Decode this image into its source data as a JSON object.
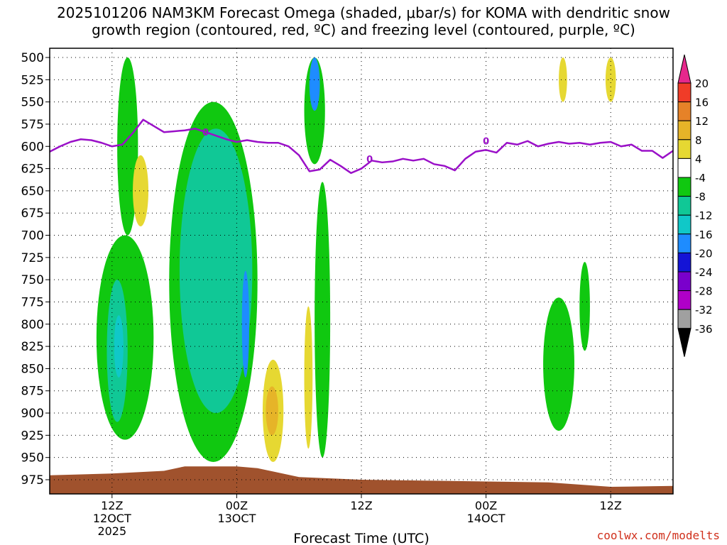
{
  "figure": {
    "title_line1": "2025101206 NAM3KM Forecast Omega (shaded, μbar/s) for KOMA with dendritic snow",
    "title_line2": "growth region (contoured, red, ºC) and freezing level (contoured, purple, ºC)",
    "watermark": "coolwx.com/modelts"
  },
  "chart_data": {
    "type": "heatmap",
    "title": "2025101206 NAM3KM Forecast Omega (shaded, μbar/s) for KOMA with dendritic snow growth region (contoured, red, ºC) and freezing level (contoured, purple, ºC)",
    "xlabel": "Forecast Time (UTC)",
    "ylabel": "",
    "x_range_hours": [
      6,
      66
    ],
    "y_range_hPa": [
      975,
      500
    ],
    "grid": "dotted",
    "x_ticks": [
      {
        "hour": 12,
        "label": "12Z",
        "sub1": "12OCT",
        "sub2": "2025"
      },
      {
        "hour": 24,
        "label": "00Z",
        "sub1": "13OCT",
        "sub2": ""
      },
      {
        "hour": 36,
        "label": "12Z",
        "sub1": "",
        "sub2": ""
      },
      {
        "hour": 48,
        "label": "00Z",
        "sub1": "14OCT",
        "sub2": ""
      },
      {
        "hour": 60,
        "label": "12Z",
        "sub1": "",
        "sub2": ""
      }
    ],
    "y_ticks": [
      500,
      525,
      550,
      575,
      600,
      625,
      650,
      675,
      700,
      725,
      750,
      775,
      800,
      825,
      850,
      875,
      900,
      925,
      950,
      975
    ],
    "colorbar": {
      "levels": [
        -36,
        -32,
        -28,
        -24,
        -20,
        -16,
        -12,
        -8,
        -4,
        4,
        8,
        12,
        16,
        20
      ],
      "colors": [
        "#000000",
        "#a0a0a0",
        "#b000c8",
        "#7a00cc",
        "#1414d6",
        "#1e8cff",
        "#10c8c8",
        "#10c896",
        "#10c810",
        "#ffffff",
        "#e6d832",
        "#e6b428",
        "#e68228",
        "#f03c28",
        "#e6288c"
      ]
    },
    "freezing_level": {
      "label": "0",
      "hours": [
        6,
        7,
        8,
        9,
        10,
        11,
        12,
        13,
        14,
        15,
        16,
        17,
        18,
        19,
        20,
        21,
        22,
        23,
        24,
        25,
        26,
        27,
        28,
        29,
        30,
        31,
        32,
        33,
        34,
        35,
        36,
        37,
        38,
        39,
        40,
        41,
        42,
        43,
        44,
        45,
        46,
        47,
        48,
        49,
        50,
        51,
        52,
        53,
        54,
        55,
        56,
        57,
        58,
        59,
        60,
        61,
        62,
        63,
        64,
        65,
        66
      ],
      "pressure_hPa": [
        606,
        600,
        595,
        592,
        593,
        596,
        600,
        598,
        585,
        570,
        577,
        584,
        583,
        582,
        580,
        584,
        588,
        592,
        595,
        593,
        595,
        596,
        596,
        600,
        610,
        628,
        626,
        615,
        622,
        630,
        625,
        616,
        618,
        617,
        614,
        616,
        614,
        620,
        622,
        627,
        614,
        606,
        604,
        607,
        596,
        598,
        594,
        600,
        597,
        595,
        597,
        596,
        598,
        596,
        595,
        600,
        598,
        605,
        605,
        613,
        605
      ]
    },
    "omega_regions": [
      {
        "value": -8,
        "hours": [
          12.5,
          14.5
        ],
        "p_hPa": [
          500,
          700
        ]
      },
      {
        "value": -8,
        "hours": [
          10.5,
          16
        ],
        "p_hPa": [
          700,
          930
        ]
      },
      {
        "value": -12,
        "hours": [
          11.5,
          13.5
        ],
        "p_hPa": [
          750,
          910
        ]
      },
      {
        "value": -16,
        "hours": [
          12.2,
          13.1
        ],
        "p_hPa": [
          790,
          860
        ]
      },
      {
        "value": -8,
        "hours": [
          17.5,
          26
        ],
        "p_hPa": [
          550,
          955
        ]
      },
      {
        "value": -12,
        "hours": [
          18.5,
          25.5
        ],
        "p_hPa": [
          580,
          900
        ]
      },
      {
        "value": -20,
        "hours": [
          24.5,
          25.2
        ],
        "p_hPa": [
          740,
          860
        ]
      },
      {
        "value": -8,
        "hours": [
          30.5,
          32.5
        ],
        "p_hPa": [
          500,
          620
        ]
      },
      {
        "value": -20,
        "hours": [
          31,
          32
        ],
        "p_hPa": [
          500,
          560
        ]
      },
      {
        "value": -8,
        "hours": [
          31.5,
          33
        ],
        "p_hPa": [
          640,
          950
        ]
      },
      {
        "value": -8,
        "hours": [
          53.5,
          56.5
        ],
        "p_hPa": [
          770,
          920
        ]
      },
      {
        "value": -8,
        "hours": [
          57,
          58
        ],
        "p_hPa": [
          730,
          830
        ]
      },
      {
        "value": 4,
        "hours": [
          14,
          15.5
        ],
        "p_hPa": [
          610,
          690
        ]
      },
      {
        "value": 4,
        "hours": [
          26.5,
          28.5
        ],
        "p_hPa": [
          840,
          955
        ]
      },
      {
        "value": 8,
        "hours": [
          26.8,
          28
        ],
        "p_hPa": [
          870,
          925
        ]
      },
      {
        "value": 4,
        "hours": [
          30.5,
          31.3
        ],
        "p_hPa": [
          780,
          940
        ]
      },
      {
        "value": 4,
        "hours": [
          59.5,
          60.5
        ],
        "p_hPa": [
          500,
          550
        ]
      },
      {
        "value": 4,
        "hours": [
          55,
          55.8
        ],
        "p_hPa": [
          500,
          550
        ]
      }
    ],
    "terrain": {
      "hours": [
        6,
        12,
        17,
        19,
        24,
        26,
        30,
        36,
        42,
        48,
        54,
        60,
        66
      ],
      "pressure_hPa": [
        970,
        968,
        965,
        960,
        960,
        962,
        972,
        975,
        976,
        977,
        978,
        983,
        982
      ]
    }
  }
}
